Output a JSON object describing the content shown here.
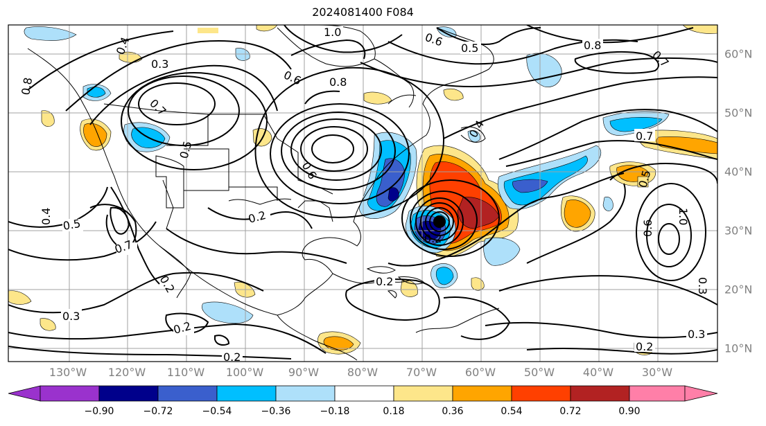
{
  "title": "2024081400 F084",
  "lon_labels": [
    "130°W",
    "120°W",
    "110°W",
    "100°W",
    "90°W",
    "80°W",
    "70°W",
    "60°W",
    "50°W",
    "40°W",
    "30°W"
  ],
  "lat_labels": [
    "60°N",
    "50°N",
    "40°N",
    "30°N",
    "20°N",
    "10°N"
  ],
  "colorbar": {
    "ticks": [
      "−0.90",
      "−0.72",
      "−0.54",
      "−0.36",
      "−0.18",
      "0.18",
      "0.36",
      "0.54",
      "0.72",
      "0.90"
    ],
    "colors": [
      "#9a32cd",
      "#00008b",
      "#3a5fcd",
      "#00bfff",
      "#aee0fa",
      "#ffffff",
      "#fde68a",
      "#ffa500",
      "#ff4000",
      "#b22222",
      "#ff7fa8"
    ]
  },
  "contour_labels": [
    "1.0",
    "0.8",
    "0.6",
    "0.5",
    "0.4",
    "0.3",
    "0.2",
    "0.7",
    "0.8",
    "0.5",
    "0.4",
    "0.5",
    "0.6",
    "0.7",
    "0.2",
    "0.2",
    "0.3",
    "0.2",
    "0.2",
    "0.3",
    "0.2",
    "0.7",
    "0.5",
    "0.6",
    "1.0",
    "0.3",
    "0.7",
    "0.8",
    "0.6",
    "0.4",
    "0.2"
  ]
}
